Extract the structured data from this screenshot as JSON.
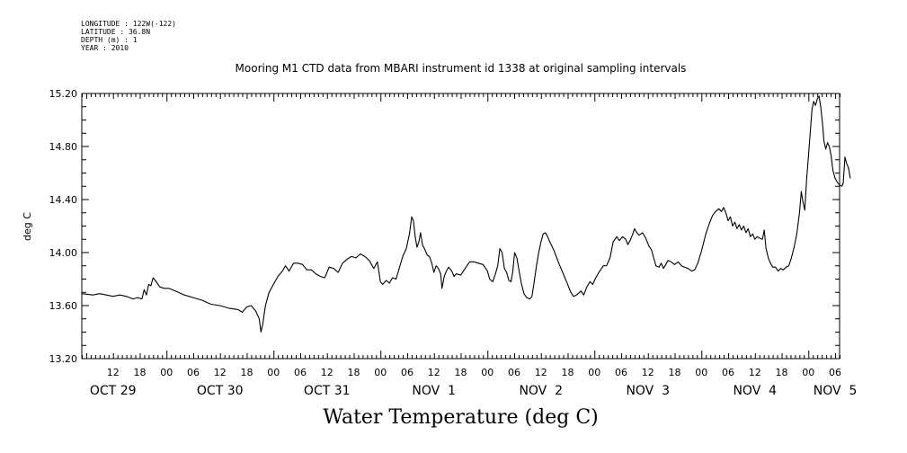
{
  "meta_lines": [
    "LONGITUDE : 122W(-122)",
    "LATITUDE : 36.8N",
    "DEPTH (m) : 1",
    "YEAR : 2010"
  ],
  "chart_data": {
    "type": "line",
    "title": "Mooring M1 CTD data from MBARI instrument id 1338 at original sampling intervals",
    "xlabel": "Water Temperature (deg C)",
    "ylabel": "deg C",
    "xlim": [
      5,
      175
    ],
    "ylim": [
      13.2,
      15.2
    ],
    "x_unit": "hours from OCT 29 00:00 (2010)",
    "yticks": [
      "13.20",
      "13.60",
      "14.00",
      "14.40",
      "14.80",
      "15.20"
    ],
    "hour_ticks": [
      {
        "x": 12,
        "label": "12"
      },
      {
        "x": 18,
        "label": "18"
      },
      {
        "x": 24,
        "label": "00"
      },
      {
        "x": 30,
        "label": "06"
      },
      {
        "x": 36,
        "label": "12"
      },
      {
        "x": 42,
        "label": "18"
      },
      {
        "x": 48,
        "label": "00"
      },
      {
        "x": 54,
        "label": "06"
      },
      {
        "x": 60,
        "label": "12"
      },
      {
        "x": 66,
        "label": "18"
      },
      {
        "x": 72,
        "label": "00"
      },
      {
        "x": 78,
        "label": "06"
      },
      {
        "x": 84,
        "label": "12"
      },
      {
        "x": 90,
        "label": "18"
      },
      {
        "x": 96,
        "label": "00"
      },
      {
        "x": 102,
        "label": "06"
      },
      {
        "x": 108,
        "label": "12"
      },
      {
        "x": 114,
        "label": "18"
      },
      {
        "x": 120,
        "label": "00"
      },
      {
        "x": 126,
        "label": "06"
      },
      {
        "x": 132,
        "label": "12"
      },
      {
        "x": 138,
        "label": "18"
      },
      {
        "x": 144,
        "label": "00"
      },
      {
        "x": 150,
        "label": "06"
      },
      {
        "x": 156,
        "label": "12"
      },
      {
        "x": 162,
        "label": "18"
      },
      {
        "x": 168,
        "label": "00"
      },
      {
        "x": 174,
        "label": "06"
      }
    ],
    "day_labels": [
      {
        "x": 12,
        "label": "OCT 29"
      },
      {
        "x": 36,
        "label": "OCT 30"
      },
      {
        "x": 60,
        "label": "OCT 31"
      },
      {
        "x": 84,
        "label": "NOV  1"
      },
      {
        "x": 108,
        "label": "NOV  2"
      },
      {
        "x": 132,
        "label": "NOV  3"
      },
      {
        "x": 156,
        "label": "NOV  4"
      },
      {
        "x": 174,
        "label": "NOV  5"
      }
    ],
    "series": [
      {
        "points": [
          [
            5.0,
            13.69
          ],
          [
            7.5,
            13.68
          ],
          [
            9.0,
            13.69
          ],
          [
            10.5,
            13.68
          ],
          [
            12.0,
            13.67
          ],
          [
            13.5,
            13.68
          ],
          [
            15.0,
            13.67
          ],
          [
            16.5,
            13.65
          ],
          [
            17.5,
            13.66
          ],
          [
            18.5,
            13.65
          ],
          [
            19.0,
            13.72
          ],
          [
            19.5,
            13.68
          ],
          [
            20.0,
            13.76
          ],
          [
            20.5,
            13.75
          ],
          [
            21.0,
            13.81
          ],
          [
            21.7,
            13.78
          ],
          [
            22.5,
            13.74
          ],
          [
            23.5,
            13.73
          ],
          [
            24.5,
            13.73
          ],
          [
            26.0,
            13.71
          ],
          [
            28.0,
            13.68
          ],
          [
            30.0,
            13.66
          ],
          [
            32.0,
            13.64
          ],
          [
            34.0,
            13.61
          ],
          [
            36.0,
            13.6
          ],
          [
            38.0,
            13.58
          ],
          [
            40.0,
            13.57
          ],
          [
            41.0,
            13.55
          ],
          [
            42.0,
            13.59
          ],
          [
            43.0,
            13.6
          ],
          [
            44.0,
            13.56
          ],
          [
            44.8,
            13.5
          ],
          [
            45.2,
            13.4
          ],
          [
            45.6,
            13.46
          ],
          [
            46.2,
            13.6
          ],
          [
            47.0,
            13.7
          ],
          [
            48.0,
            13.76
          ],
          [
            49.0,
            13.82
          ],
          [
            50.0,
            13.86
          ],
          [
            50.7,
            13.9
          ],
          [
            51.5,
            13.86
          ],
          [
            52.5,
            13.92
          ],
          [
            53.5,
            13.92
          ],
          [
            54.5,
            13.91
          ],
          [
            55.5,
            13.87
          ],
          [
            56.5,
            13.87
          ],
          [
            57.5,
            13.84
          ],
          [
            58.5,
            13.82
          ],
          [
            59.5,
            13.81
          ],
          [
            60.5,
            13.89
          ],
          [
            61.5,
            13.88
          ],
          [
            62.5,
            13.85
          ],
          [
            63.5,
            13.92
          ],
          [
            64.5,
            13.95
          ],
          [
            65.5,
            13.97
          ],
          [
            66.5,
            13.96
          ],
          [
            67.5,
            13.99
          ],
          [
            68.5,
            13.97
          ],
          [
            69.5,
            13.94
          ],
          [
            70.5,
            13.88
          ],
          [
            71.3,
            13.93
          ],
          [
            72.0,
            13.78
          ],
          [
            72.5,
            13.76
          ],
          [
            73.3,
            13.79
          ],
          [
            74.0,
            13.77
          ],
          [
            74.7,
            13.81
          ],
          [
            75.5,
            13.8
          ],
          [
            76.2,
            13.88
          ],
          [
            77.0,
            13.97
          ],
          [
            77.8,
            14.03
          ],
          [
            78.5,
            14.14
          ],
          [
            79.0,
            14.27
          ],
          [
            79.4,
            14.24
          ],
          [
            79.8,
            14.12
          ],
          [
            80.2,
            14.04
          ],
          [
            80.6,
            14.08
          ],
          [
            81.0,
            14.15
          ],
          [
            81.4,
            14.06
          ],
          [
            82.0,
            14.02
          ],
          [
            82.5,
            13.98
          ],
          [
            83.0,
            13.97
          ],
          [
            83.5,
            13.92
          ],
          [
            84.0,
            13.85
          ],
          [
            84.5,
            13.9
          ],
          [
            85.0,
            13.88
          ],
          [
            85.5,
            13.84
          ],
          [
            85.8,
            13.73
          ],
          [
            86.3,
            13.82
          ],
          [
            86.8,
            13.86
          ],
          [
            87.3,
            13.89
          ],
          [
            88.0,
            13.86
          ],
          [
            88.5,
            13.82
          ],
          [
            89.0,
            13.84
          ],
          [
            90.0,
            13.83
          ],
          [
            91.0,
            13.88
          ],
          [
            92.0,
            13.93
          ],
          [
            93.0,
            13.93
          ],
          [
            94.0,
            13.92
          ],
          [
            95.0,
            13.91
          ],
          [
            96.0,
            13.86
          ],
          [
            96.5,
            13.8
          ],
          [
            97.2,
            13.78
          ],
          [
            97.8,
            13.84
          ],
          [
            98.3,
            13.9
          ],
          [
            98.8,
            14.03
          ],
          [
            99.3,
            14.0
          ],
          [
            99.8,
            13.88
          ],
          [
            100.3,
            13.85
          ],
          [
            100.8,
            13.79
          ],
          [
            101.3,
            13.78
          ],
          [
            101.7,
            13.86
          ],
          [
            102.1,
            14.0
          ],
          [
            102.6,
            13.96
          ],
          [
            103.1,
            13.86
          ],
          [
            103.6,
            13.77
          ],
          [
            104.2,
            13.69
          ],
          [
            104.8,
            13.66
          ],
          [
            105.5,
            13.65
          ],
          [
            106.0,
            13.67
          ],
          [
            106.5,
            13.78
          ],
          [
            107.0,
            13.9
          ],
          [
            107.5,
            14.0
          ],
          [
            108.0,
            14.08
          ],
          [
            108.5,
            14.14
          ],
          [
            109.0,
            14.15
          ],
          [
            109.5,
            14.12
          ],
          [
            110.0,
            14.08
          ],
          [
            111.0,
            14.01
          ],
          [
            112.0,
            13.92
          ],
          [
            113.0,
            13.84
          ],
          [
            114.0,
            13.76
          ],
          [
            114.7,
            13.7
          ],
          [
            115.3,
            13.67
          ],
          [
            116.0,
            13.68
          ],
          [
            117.0,
            13.71
          ],
          [
            117.6,
            13.68
          ],
          [
            118.3,
            13.74
          ],
          [
            119.0,
            13.78
          ],
          [
            119.6,
            13.76
          ],
          [
            120.3,
            13.81
          ],
          [
            121.0,
            13.85
          ],
          [
            122.0,
            13.9
          ],
          [
            122.7,
            13.9
          ],
          [
            123.5,
            13.96
          ],
          [
            124.2,
            14.08
          ],
          [
            125.0,
            14.12
          ],
          [
            125.6,
            14.09
          ],
          [
            126.3,
            14.12
          ],
          [
            127.0,
            14.1
          ],
          [
            127.5,
            14.06
          ],
          [
            128.0,
            14.09
          ],
          [
            128.5,
            14.13
          ],
          [
            129.0,
            14.18
          ],
          [
            129.5,
            14.15
          ],
          [
            130.0,
            14.13
          ],
          [
            130.8,
            14.15
          ],
          [
            131.5,
            14.11
          ],
          [
            132.2,
            14.05
          ],
          [
            132.8,
            14.02
          ],
          [
            133.3,
            13.96
          ],
          [
            133.8,
            13.9
          ],
          [
            134.5,
            13.89
          ],
          [
            135.0,
            13.92
          ],
          [
            135.5,
            13.88
          ],
          [
            136.0,
            13.91
          ],
          [
            136.5,
            13.94
          ],
          [
            137.2,
            13.93
          ],
          [
            138.0,
            13.91
          ],
          [
            138.8,
            13.93
          ],
          [
            139.5,
            13.9
          ],
          [
            140.2,
            13.89
          ],
          [
            141.0,
            13.88
          ],
          [
            141.8,
            13.86
          ],
          [
            142.5,
            13.87
          ],
          [
            143.2,
            13.92
          ],
          [
            144.0,
            14.01
          ],
          [
            145.0,
            14.14
          ],
          [
            145.8,
            14.22
          ],
          [
            146.5,
            14.28
          ],
          [
            147.2,
            14.31
          ],
          [
            147.9,
            14.33
          ],
          [
            148.5,
            14.31
          ],
          [
            149.0,
            14.34
          ],
          [
            149.5,
            14.3
          ],
          [
            150.0,
            14.24
          ],
          [
            150.5,
            14.27
          ],
          [
            151.0,
            14.2
          ],
          [
            151.5,
            14.23
          ],
          [
            152.0,
            14.18
          ],
          [
            152.5,
            14.21
          ],
          [
            153.0,
            14.17
          ],
          [
            153.5,
            14.2
          ],
          [
            154.0,
            14.15
          ],
          [
            154.5,
            14.18
          ],
          [
            155.0,
            14.12
          ],
          [
            155.5,
            14.14
          ],
          [
            156.0,
            14.1
          ],
          [
            156.5,
            14.12
          ],
          [
            157.0,
            14.11
          ],
          [
            157.7,
            14.1
          ],
          [
            158.1,
            14.17
          ],
          [
            158.5,
            14.03
          ],
          [
            159.0,
            13.96
          ],
          [
            159.5,
            13.92
          ],
          [
            160.0,
            13.89
          ],
          [
            160.6,
            13.89
          ],
          [
            161.2,
            13.86
          ],
          [
            161.8,
            13.88
          ],
          [
            162.4,
            13.87
          ],
          [
            163.0,
            13.89
          ],
          [
            163.6,
            13.9
          ],
          [
            164.2,
            13.96
          ],
          [
            164.8,
            14.04
          ],
          [
            165.4,
            14.14
          ],
          [
            166.0,
            14.3
          ],
          [
            166.4,
            14.46
          ],
          [
            166.8,
            14.38
          ],
          [
            167.2,
            14.32
          ],
          [
            167.6,
            14.55
          ],
          [
            168.0,
            14.72
          ],
          [
            168.4,
            14.9
          ],
          [
            168.8,
            15.08
          ],
          [
            169.2,
            15.14
          ],
          [
            169.6,
            15.11
          ],
          [
            170.0,
            15.16
          ],
          [
            170.4,
            15.18
          ],
          [
            170.8,
            15.09
          ],
          [
            171.2,
            14.96
          ],
          [
            171.5,
            14.84
          ],
          [
            171.9,
            14.78
          ],
          [
            172.3,
            14.83
          ],
          [
            172.7,
            14.8
          ],
          [
            173.1,
            14.73
          ],
          [
            173.5,
            14.62
          ],
          [
            174.0,
            14.56
          ],
          [
            174.5,
            14.53
          ],
          [
            175.0,
            14.51
          ],
          [
            175.5,
            14.5
          ],
          [
            175.8,
            14.52
          ],
          [
            176.2,
            14.72
          ],
          [
            176.6,
            14.67
          ],
          [
            177.0,
            14.64
          ],
          [
            177.4,
            14.56
          ]
        ]
      }
    ]
  }
}
